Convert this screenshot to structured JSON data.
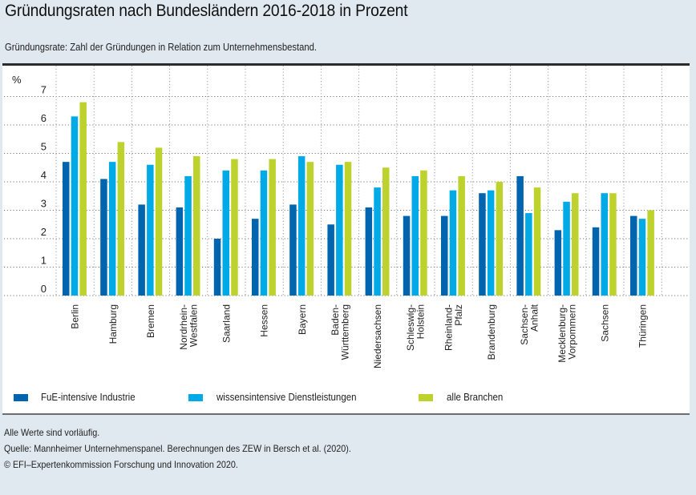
{
  "title": "Gründungsraten nach Bundesländern 2016-2018 in Prozent",
  "subtitle": "Gründungsrate: Zahl der Gründungen in Relation zum Unternehmensbestand.",
  "notes": [
    "Alle Werte sind vorläufig.",
    "Quelle: Mannheimer Unternehmenspanel. Berechnungen des ZEW in Bersch et al. (2020).",
    "© EFI–Expertenkommission Forschung und Innovation 2020."
  ],
  "chart_data": {
    "type": "bar",
    "title": "Gründungsraten nach Bundesländern 2016-2018 in Prozent",
    "xlabel": "",
    "ylabel": "%",
    "ylim": [
      0,
      7
    ],
    "yticks": [
      0,
      1,
      2,
      3,
      4,
      5,
      6,
      7
    ],
    "grid": true,
    "legend_position": "bottom",
    "categories": [
      "Berlin",
      "Hamburg",
      "Bremen",
      "Nordrhein-Westfalen",
      "Saarland",
      "Hessen",
      "Bayern",
      "Baden-Württemberg",
      "Niedersachsen",
      "Schleswig-Holstein",
      "Rheinland-Pfalz",
      "Brandenburg",
      "Sachsen-Anhalt",
      "Mecklenburg-Vorpommern",
      "Sachsen",
      "Thüringen"
    ],
    "category_label_lines": [
      [
        "Berlin"
      ],
      [
        "Hamburg"
      ],
      [
        "Bremen"
      ],
      [
        "Nordrhein-",
        "Westfalen"
      ],
      [
        "Saarland"
      ],
      [
        "Hessen"
      ],
      [
        "Bayern"
      ],
      [
        "Baden-",
        "Württemberg"
      ],
      [
        "Niedersachsen"
      ],
      [
        "Schleswig-",
        "Holstein"
      ],
      [
        "Rheinland-",
        "Pfalz"
      ],
      [
        "Brandenburg"
      ],
      [
        "Sachsen-",
        "Anhalt"
      ],
      [
        "Mecklenburg-",
        "Vorpommern"
      ],
      [
        "Sachsen"
      ],
      [
        "Thüringen"
      ]
    ],
    "series": [
      {
        "name": "FuE-intensive Industrie",
        "color": "#0064af",
        "values": [
          4.7,
          4.1,
          3.2,
          3.1,
          2.0,
          2.7,
          3.2,
          2.5,
          3.1,
          2.8,
          2.8,
          3.6,
          4.2,
          2.3,
          2.4,
          2.8
        ]
      },
      {
        "name": "wissensintensive Dienstleistungen",
        "color": "#00aae6",
        "values": [
          6.3,
          4.7,
          4.6,
          4.2,
          4.4,
          4.4,
          4.9,
          4.6,
          3.8,
          4.2,
          3.7,
          3.7,
          2.9,
          3.3,
          3.6,
          2.7
        ]
      },
      {
        "name": "alle Branchen",
        "color": "#bed22d",
        "values": [
          6.8,
          5.4,
          5.2,
          4.9,
          4.8,
          4.8,
          4.7,
          4.7,
          4.5,
          4.4,
          4.2,
          4.0,
          3.8,
          3.6,
          3.6,
          3.0
        ]
      }
    ]
  }
}
